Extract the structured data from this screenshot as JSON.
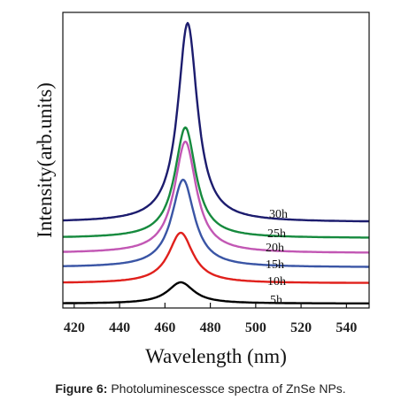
{
  "chart_data": {
    "type": "line",
    "title": "",
    "xlabel": "Wavelength (nm)",
    "ylabel": "Intensity(arb.units)",
    "xlim": [
      415,
      550
    ],
    "xticks": [
      420,
      440,
      460,
      480,
      500,
      520,
      540
    ],
    "y_ticks_shown": false,
    "grid": false,
    "legend": "inline labels at right",
    "series": [
      {
        "name": "5h",
        "color": "#000000",
        "baseline": 0,
        "peak_x": 467,
        "peak_height": 24,
        "width": 7.0
      },
      {
        "name": "10h",
        "color": "#e0201c",
        "baseline": 23,
        "peak_x": 467,
        "peak_height": 57,
        "width": 6.5
      },
      {
        "name": "15h",
        "color": "#3a55a5",
        "baseline": 41,
        "peak_x": 468,
        "peak_height": 99,
        "width": 6.0
      },
      {
        "name": "20h",
        "color": "#c257b4",
        "baseline": 57,
        "peak_x": 469,
        "peak_height": 126,
        "width": 5.8
      },
      {
        "name": "25h",
        "color": "#168a3e",
        "baseline": 74,
        "peak_x": 469,
        "peak_height": 125,
        "width": 5.6
      },
      {
        "name": "30h",
        "color": "#1c1c6e",
        "baseline": 92,
        "peak_x": 470,
        "peak_height": 225,
        "width": 5.2
      }
    ]
  },
  "caption": {
    "label": "Figure 6:",
    "text": " Photoluminescessce spectra of ZnSe NPs."
  }
}
